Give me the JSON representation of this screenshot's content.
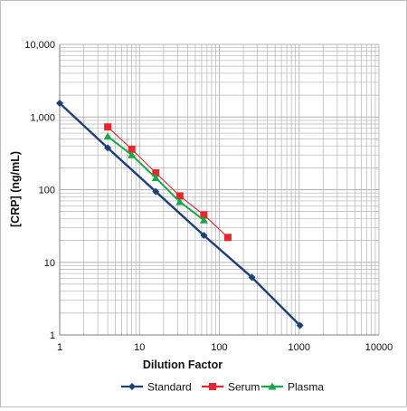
{
  "colors": {
    "Standard": "#1f3f7a",
    "Serum": "#e8262b",
    "Plasma": "#18a84b",
    "grid": "#b3b3b3",
    "axis": "#7f7f7f"
  },
  "chart_data": {
    "type": "line",
    "xlabel": "Dilution Factor",
    "ylabel": "[CRP] (ng/mL)",
    "xscale": "log",
    "yscale": "log",
    "xlim": [
      1,
      10000
    ],
    "ylim": [
      1,
      10000
    ],
    "x_ticks": [
      "1",
      "10",
      "100",
      "1000",
      "10000"
    ],
    "y_ticks": [
      "1",
      "10",
      "100",
      "1,000",
      "10,000"
    ],
    "grid": true,
    "legend": "bottom",
    "series": [
      {
        "name": "Standard",
        "marker": "diamond",
        "x": [
          1,
          4,
          16,
          64,
          256,
          1024
        ],
        "y": [
          1550,
          375,
          94,
          23.5,
          6.2,
          1.35
        ]
      },
      {
        "name": "Serum",
        "marker": "square",
        "x": [
          4,
          8,
          16,
          32,
          64,
          128
        ],
        "y": [
          730,
          360,
          170,
          82,
          45,
          22
        ]
      },
      {
        "name": "Plasma",
        "marker": "triangle",
        "x": [
          4,
          8,
          16,
          32,
          64
        ],
        "y": [
          540,
          300,
          145,
          68,
          38
        ]
      }
    ]
  }
}
